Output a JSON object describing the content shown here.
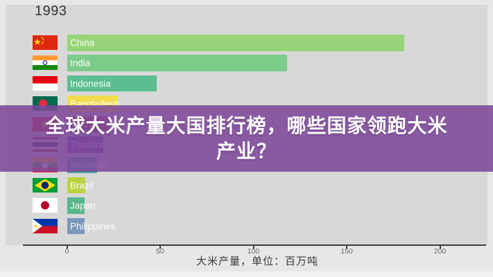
{
  "year": "1993",
  "overlay": {
    "title_line1": "全球大米产量大国排行榜，哪些国家领跑大米",
    "title_line2": "产业？",
    "bg_color": "#7d479a",
    "text_color": "#ffffff"
  },
  "chart_data": {
    "type": "bar",
    "orientation": "horizontal",
    "title": "全球大米产量大国排行榜，哪些国家领跑大米产业？",
    "xlabel": "大米产量，单位：百万吨",
    "ylabel": "",
    "xlim": [
      0,
      225
    ],
    "x_ticks": [
      0,
      50,
      100,
      150,
      200
    ],
    "grid": false,
    "legend": false,
    "categories": [
      "China",
      "India",
      "Indonesia",
      "Bangladesh",
      "Vietnam",
      "Thailand",
      "Myanmar",
      "Brazil",
      "Japan",
      "Philippines"
    ],
    "values": [
      181,
      118,
      48,
      27,
      22.5,
      19.5,
      16,
      10,
      9.6,
      9.4
    ],
    "colors": [
      "#97d477",
      "#7ccb8b",
      "#5cbd90",
      "#f2dc4e",
      "#b04b60",
      "#6f46a8",
      "#49a8a1",
      "#bdd23f",
      "#58b68b",
      "#7b97b9"
    ],
    "flags": [
      "flag-china",
      "flag-india",
      "flag-indonesia",
      "flag-bangladesh",
      "flag-vietnam",
      "flag-thailand",
      "flag-myanmar",
      "flag-brazil",
      "flag-japan",
      "flag-philippines"
    ]
  }
}
